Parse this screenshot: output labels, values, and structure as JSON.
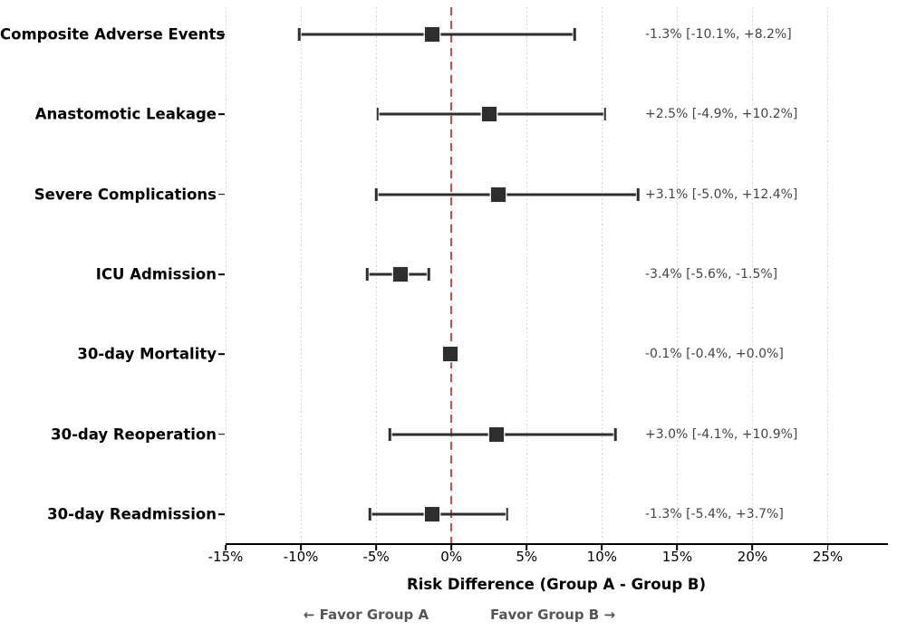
{
  "chart_data": {
    "type": "scatter",
    "variant": "forest-plot-horizontal-error-bars",
    "title": "",
    "xlabel": "Risk Difference (Group A - Group B)",
    "ylabel": "",
    "xlim": [
      -15,
      29
    ],
    "xticks": [
      -15,
      -10,
      -5,
      0,
      5,
      10,
      15,
      20,
      25
    ],
    "xtick_labels": [
      "-15%",
      "-10%",
      "-5%",
      "0%",
      "5%",
      "10%",
      "15%",
      "20%",
      "25%"
    ],
    "grid": "vertical dotted gridlines at each x tick",
    "legend": "none",
    "zero_reference_line": {
      "x": 0,
      "style": "dashed",
      "color": "#c9504e"
    },
    "rows": [
      {
        "label": "Composite Adverse Events",
        "value": -1.3,
        "ci_low": -10.1,
        "ci_high": 8.2,
        "annotation": "-1.3% [-10.1%, +8.2%]"
      },
      {
        "label": "Anastomotic Leakage",
        "value": 2.5,
        "ci_low": -4.9,
        "ci_high": 10.2,
        "annotation": "+2.5% [-4.9%, +10.2%]"
      },
      {
        "label": "Severe Complications",
        "value": 3.1,
        "ci_low": -5.0,
        "ci_high": 12.4,
        "annotation": "+3.1% [-5.0%, +12.4%]"
      },
      {
        "label": "ICU Admission",
        "value": -3.4,
        "ci_low": -5.6,
        "ci_high": -1.5,
        "annotation": "-3.4% [-5.6%, -1.5%]"
      },
      {
        "label": "30-day Mortality",
        "value": -0.1,
        "ci_low": -0.4,
        "ci_high": 0.0,
        "annotation": "-0.1% [-0.4%, +0.0%]"
      },
      {
        "label": "30-day Reoperation",
        "value": 3.0,
        "ci_low": -4.1,
        "ci_high": 10.9,
        "annotation": "+3.0% [-4.1%, +10.9%]"
      },
      {
        "label": "30-day Readmission",
        "value": -1.3,
        "ci_low": -5.4,
        "ci_high": 3.7,
        "annotation": "-1.3% [-5.4%, +3.7%]"
      }
    ],
    "footer": {
      "favor_left": "← Favor Group A",
      "favor_right": "Favor Group B →"
    },
    "colors": {
      "marker": "#2e2e2e",
      "error_bar": "#2e2e2e",
      "zero_line": "#c9504e",
      "gridline": "#cccccc",
      "axis_spine": "#000000",
      "tick_label": "#000000",
      "category_label": "#000000",
      "annotation_text": "#454545",
      "footer_text": "#555555"
    }
  }
}
